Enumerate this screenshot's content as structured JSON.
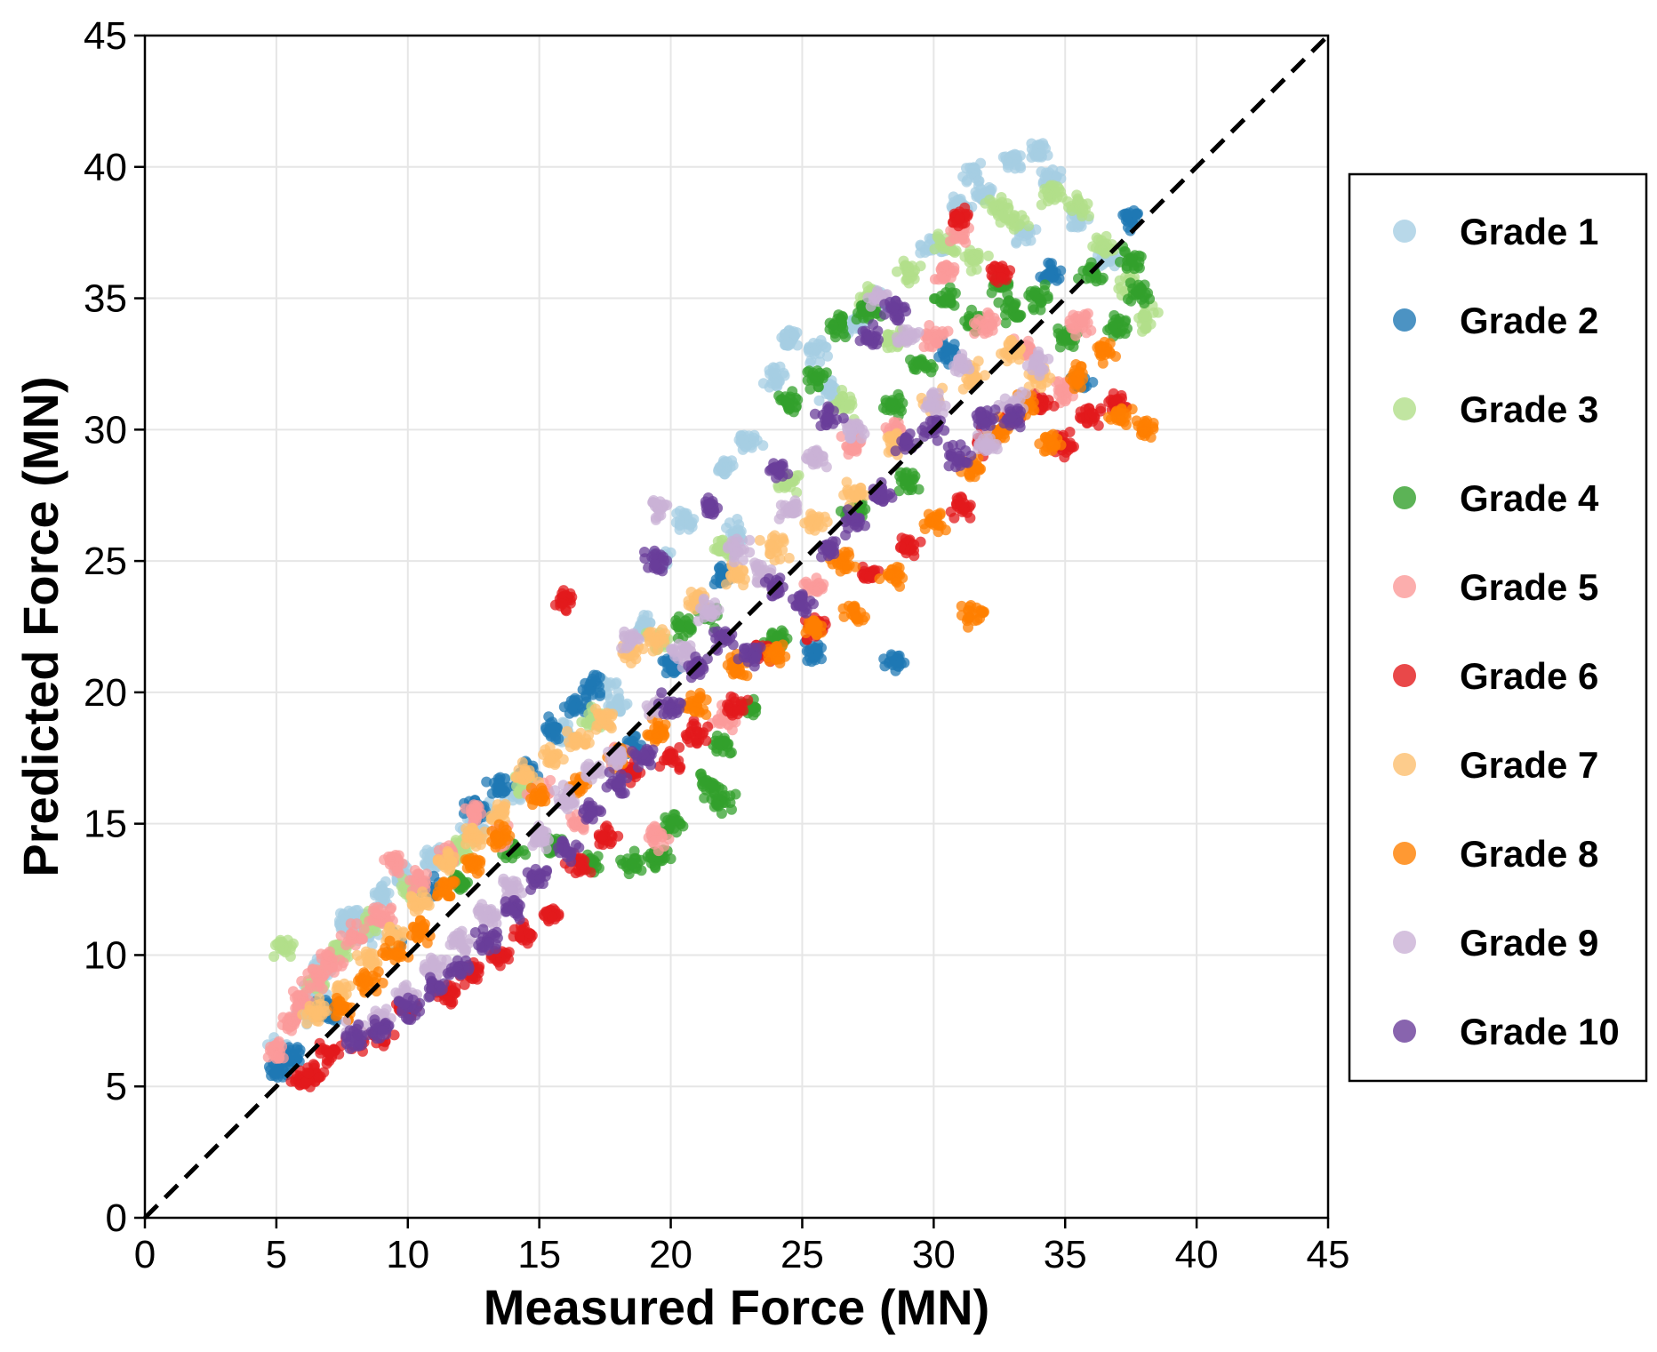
{
  "chart_data": {
    "type": "scatter",
    "title": "",
    "xlabel": "Measured Force (MN)",
    "ylabel": "Predicted Force (MN)",
    "xlim": [
      0,
      45
    ],
    "ylim": [
      0,
      45
    ],
    "xticks": [
      0,
      5,
      10,
      15,
      20,
      25,
      30,
      35,
      40,
      45
    ],
    "yticks": [
      0,
      5,
      10,
      15,
      20,
      25,
      30,
      35,
      40,
      45
    ],
    "grid": true,
    "reference_line": {
      "style": "dashed",
      "color": "#000000",
      "from": [
        0,
        0
      ],
      "to": [
        45,
        45
      ]
    },
    "legend_position": "right",
    "series": [
      {
        "name": "Grade 1",
        "color": "#a6cee3",
        "points": [
          [
            5.2,
            6.4
          ],
          [
            6.0,
            7.8
          ],
          [
            6.8,
            9.5
          ],
          [
            7.5,
            11.2
          ],
          [
            8.2,
            11.5
          ],
          [
            9.0,
            12.3
          ],
          [
            9.8,
            13.0
          ],
          [
            11.0,
            13.6
          ],
          [
            12.5,
            14.8
          ],
          [
            14.0,
            16.2
          ],
          [
            16.0,
            18.4
          ],
          [
            17.5,
            20.2
          ],
          [
            19.0,
            22.5
          ],
          [
            19.5,
            25.0
          ],
          [
            20.5,
            26.5
          ],
          [
            22.0,
            28.5
          ],
          [
            23.0,
            29.5
          ],
          [
            24.0,
            32.0
          ],
          [
            24.5,
            33.5
          ],
          [
            25.5,
            33.0
          ],
          [
            27.0,
            34.0
          ],
          [
            28.0,
            35.0
          ],
          [
            30.0,
            37.0
          ],
          [
            31.0,
            38.5
          ],
          [
            32.0,
            39.0
          ],
          [
            33.0,
            40.2
          ],
          [
            34.0,
            40.6
          ],
          [
            34.5,
            39.5
          ],
          [
            35.5,
            38.0
          ],
          [
            36.5,
            36.5
          ],
          [
            31.5,
            39.8
          ],
          [
            33.5,
            37.5
          ],
          [
            26.0,
            31.5
          ],
          [
            22.5,
            26.0
          ],
          [
            18.0,
            19.5
          ],
          [
            13.0,
            15.5
          ],
          [
            8.5,
            10.8
          ],
          [
            6.5,
            8.5
          ]
        ]
      },
      {
        "name": "Grade 2",
        "color": "#1f78b4",
        "points": [
          [
            5.1,
            5.7
          ],
          [
            5.6,
            6.2
          ],
          [
            7.0,
            7.9
          ],
          [
            9.5,
            10.5
          ],
          [
            10.8,
            12.5
          ],
          [
            12.5,
            15.5
          ],
          [
            13.5,
            16.5
          ],
          [
            14.5,
            17.0
          ],
          [
            15.5,
            18.5
          ],
          [
            16.5,
            19.5
          ],
          [
            17.0,
            20.3
          ],
          [
            18.5,
            18.0
          ],
          [
            20.0,
            21.0
          ],
          [
            25.5,
            21.5
          ],
          [
            28.5,
            21.2
          ],
          [
            30.5,
            33.0
          ],
          [
            35.5,
            31.8
          ],
          [
            37.5,
            38.0
          ],
          [
            34.5,
            36.0
          ],
          [
            22.0,
            24.5
          ]
        ]
      },
      {
        "name": "Grade 3",
        "color": "#b2df8a",
        "points": [
          [
            5.2,
            10.3
          ],
          [
            6.5,
            9.0
          ],
          [
            7.5,
            10.2
          ],
          [
            8.5,
            11.2
          ],
          [
            10.0,
            12.5
          ],
          [
            12.0,
            14.0
          ],
          [
            14.5,
            16.5
          ],
          [
            17.0,
            19.0
          ],
          [
            19.5,
            22.0
          ],
          [
            22.0,
            25.5
          ],
          [
            24.5,
            28.0
          ],
          [
            26.5,
            31.0
          ],
          [
            27.5,
            35.0
          ],
          [
            29.0,
            36.0
          ],
          [
            30.5,
            37.0
          ],
          [
            31.5,
            36.5
          ],
          [
            33.0,
            38.0
          ],
          [
            34.5,
            39.0
          ],
          [
            35.5,
            38.5
          ],
          [
            36.5,
            37.0
          ],
          [
            37.5,
            35.5
          ],
          [
            38.0,
            34.2
          ],
          [
            32.5,
            38.5
          ],
          [
            28.5,
            33.5
          ]
        ]
      },
      {
        "name": "Grade 4",
        "color": "#33a02c",
        "points": [
          [
            12.0,
            12.8
          ],
          [
            14.0,
            14.0
          ],
          [
            15.5,
            14.2
          ],
          [
            17.0,
            13.5
          ],
          [
            18.5,
            13.5
          ],
          [
            19.5,
            13.7
          ],
          [
            20.0,
            15.0
          ],
          [
            21.5,
            16.5
          ],
          [
            22.0,
            18.0
          ],
          [
            23.0,
            19.5
          ],
          [
            20.5,
            22.5
          ],
          [
            21.5,
            23.0
          ],
          [
            24.5,
            31.0
          ],
          [
            25.5,
            32.0
          ],
          [
            26.5,
            34.0
          ],
          [
            27.5,
            34.5
          ],
          [
            28.5,
            31.0
          ],
          [
            29.5,
            32.5
          ],
          [
            30.5,
            35.0
          ],
          [
            31.5,
            34.0
          ],
          [
            32.5,
            35.5
          ],
          [
            33.0,
            34.5
          ],
          [
            34.0,
            35.0
          ],
          [
            35.0,
            33.5
          ],
          [
            36.0,
            36.0
          ],
          [
            37.0,
            34.0
          ],
          [
            37.5,
            36.5
          ],
          [
            37.8,
            35.2
          ],
          [
            29.0,
            28.0
          ],
          [
            27.0,
            27.0
          ],
          [
            24.0,
            22.0
          ],
          [
            22.0,
            15.8
          ]
        ]
      },
      {
        "name": "Grade 5",
        "color": "#fb9a99",
        "points": [
          [
            5.0,
            6.3
          ],
          [
            5.5,
            7.5
          ],
          [
            6.0,
            8.3
          ],
          [
            6.5,
            9.2
          ],
          [
            7.0,
            9.8
          ],
          [
            8.0,
            10.7
          ],
          [
            9.0,
            11.5
          ],
          [
            9.5,
            13.5
          ],
          [
            10.5,
            12.8
          ],
          [
            11.5,
            13.8
          ],
          [
            12.5,
            15.5
          ],
          [
            13.5,
            14.5
          ],
          [
            15.0,
            16.2
          ],
          [
            16.5,
            15.0
          ],
          [
            18.0,
            17.5
          ],
          [
            19.5,
            14.5
          ],
          [
            22.0,
            19.0
          ],
          [
            25.5,
            24.0
          ],
          [
            28.5,
            30.0
          ],
          [
            30.0,
            33.5
          ],
          [
            31.0,
            37.5
          ],
          [
            32.0,
            34.0
          ],
          [
            33.5,
            33.0
          ],
          [
            35.0,
            31.5
          ],
          [
            35.5,
            34.0
          ],
          [
            30.5,
            36.0
          ],
          [
            27.0,
            29.5
          ]
        ]
      },
      {
        "name": "Grade 6",
        "color": "#e31a1c",
        "points": [
          [
            6.0,
            5.2
          ],
          [
            6.5,
            5.5
          ],
          [
            7.0,
            6.3
          ],
          [
            8.0,
            6.8
          ],
          [
            9.0,
            7.0
          ],
          [
            10.0,
            8.0
          ],
          [
            11.5,
            8.5
          ],
          [
            12.5,
            9.3
          ],
          [
            13.5,
            10.0
          ],
          [
            14.5,
            10.8
          ],
          [
            15.5,
            11.5
          ],
          [
            16.5,
            13.5
          ],
          [
            17.5,
            14.5
          ],
          [
            18.5,
            17.0
          ],
          [
            20.0,
            17.5
          ],
          [
            21.0,
            18.5
          ],
          [
            22.5,
            19.5
          ],
          [
            23.5,
            21.5
          ],
          [
            25.5,
            22.5
          ],
          [
            27.5,
            24.5
          ],
          [
            29.0,
            25.5
          ],
          [
            31.0,
            27.0
          ],
          [
            32.0,
            29.5
          ],
          [
            33.0,
            30.5
          ],
          [
            34.0,
            31.0
          ],
          [
            35.0,
            29.5
          ],
          [
            36.0,
            30.5
          ],
          [
            37.0,
            31.0
          ],
          [
            31.0,
            38.0
          ],
          [
            32.5,
            36.0
          ],
          [
            16.0,
            23.5
          ]
        ]
      },
      {
        "name": "Grade 7",
        "color": "#fdbf6f",
        "points": [
          [
            6.5,
            7.8
          ],
          [
            7.5,
            8.6
          ],
          [
            8.5,
            9.8
          ],
          [
            9.5,
            10.8
          ],
          [
            10.5,
            12.0
          ],
          [
            11.5,
            13.5
          ],
          [
            12.5,
            14.5
          ],
          [
            13.5,
            15.5
          ],
          [
            14.5,
            16.8
          ],
          [
            15.5,
            17.5
          ],
          [
            16.5,
            18.2
          ],
          [
            17.5,
            19.0
          ],
          [
            18.5,
            21.5
          ],
          [
            19.5,
            22.0
          ],
          [
            21.0,
            23.5
          ],
          [
            22.5,
            24.5
          ],
          [
            24.0,
            25.5
          ],
          [
            25.5,
            26.5
          ],
          [
            27.0,
            27.5
          ],
          [
            28.5,
            29.5
          ],
          [
            30.0,
            31.0
          ],
          [
            31.5,
            32.0
          ],
          [
            33.0,
            33.0
          ],
          [
            34.0,
            32.0
          ]
        ]
      },
      {
        "name": "Grade 8",
        "color": "#ff7f00",
        "points": [
          [
            7.5,
            8.0
          ],
          [
            8.5,
            9.0
          ],
          [
            9.5,
            10.0
          ],
          [
            10.5,
            11.0
          ],
          [
            11.5,
            12.5
          ],
          [
            12.5,
            13.5
          ],
          [
            13.5,
            14.5
          ],
          [
            15.0,
            16.0
          ],
          [
            16.5,
            16.5
          ],
          [
            18.0,
            17.5
          ],
          [
            19.5,
            18.5
          ],
          [
            21.0,
            19.5
          ],
          [
            22.5,
            21.0
          ],
          [
            24.0,
            21.5
          ],
          [
            25.5,
            22.5
          ],
          [
            27.0,
            23.0
          ],
          [
            28.5,
            24.5
          ],
          [
            30.0,
            26.5
          ],
          [
            31.5,
            28.5
          ],
          [
            32.5,
            30.0
          ],
          [
            33.5,
            31.0
          ],
          [
            34.5,
            29.5
          ],
          [
            35.5,
            32.0
          ],
          [
            36.5,
            33.0
          ],
          [
            37.0,
            30.5
          ],
          [
            38.0,
            30.0
          ],
          [
            31.5,
            23.0
          ],
          [
            26.5,
            25.0
          ]
        ]
      },
      {
        "name": "Grade 9",
        "color": "#cab2d6",
        "points": [
          [
            8.0,
            7.0
          ],
          [
            9.0,
            7.5
          ],
          [
            10.0,
            8.5
          ],
          [
            11.0,
            9.5
          ],
          [
            12.0,
            10.5
          ],
          [
            13.0,
            11.5
          ],
          [
            14.0,
            12.5
          ],
          [
            15.0,
            14.5
          ],
          [
            16.0,
            16.0
          ],
          [
            17.0,
            17.0
          ],
          [
            18.0,
            17.5
          ],
          [
            19.5,
            19.5
          ],
          [
            20.5,
            21.5
          ],
          [
            21.5,
            23.0
          ],
          [
            22.5,
            25.5
          ],
          [
            23.5,
            24.5
          ],
          [
            24.5,
            27.0
          ],
          [
            25.5,
            29.0
          ],
          [
            27.0,
            30.0
          ],
          [
            28.0,
            35.0
          ],
          [
            29.0,
            33.5
          ],
          [
            30.0,
            31.0
          ],
          [
            31.0,
            32.5
          ],
          [
            32.0,
            29.5
          ],
          [
            33.0,
            31.0
          ],
          [
            34.0,
            32.5
          ],
          [
            19.5,
            27.0
          ],
          [
            18.5,
            22.0
          ]
        ]
      },
      {
        "name": "Grade 10",
        "color": "#6a3d9a",
        "points": [
          [
            8.0,
            6.8
          ],
          [
            9.0,
            7.2
          ],
          [
            10.0,
            8.0
          ],
          [
            11.0,
            8.8
          ],
          [
            12.0,
            9.5
          ],
          [
            13.0,
            10.5
          ],
          [
            14.0,
            11.8
          ],
          [
            15.0,
            13.0
          ],
          [
            16.0,
            14.0
          ],
          [
            17.0,
            15.5
          ],
          [
            18.0,
            16.5
          ],
          [
            19.0,
            17.5
          ],
          [
            20.0,
            19.5
          ],
          [
            21.0,
            21.0
          ],
          [
            22.0,
            22.0
          ],
          [
            23.0,
            21.5
          ],
          [
            24.0,
            24.0
          ],
          [
            25.0,
            23.5
          ],
          [
            26.0,
            25.5
          ],
          [
            27.0,
            26.5
          ],
          [
            28.0,
            27.5
          ],
          [
            29.0,
            29.5
          ],
          [
            30.0,
            30.0
          ],
          [
            31.0,
            29.0
          ],
          [
            32.0,
            30.5
          ],
          [
            33.0,
            30.5
          ],
          [
            19.5,
            25.0
          ],
          [
            21.5,
            27.0
          ],
          [
            27.5,
            33.5
          ],
          [
            28.5,
            34.5
          ],
          [
            26.0,
            30.5
          ],
          [
            24.0,
            28.5
          ]
        ]
      }
    ]
  }
}
